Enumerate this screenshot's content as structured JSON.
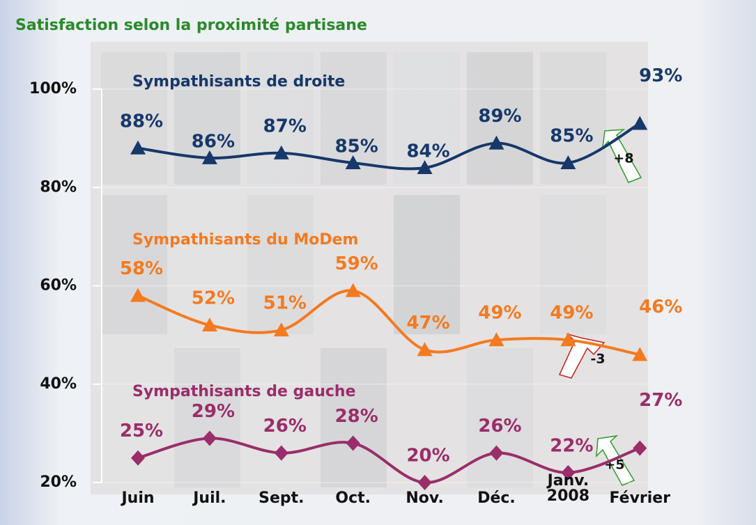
{
  "chart_data": {
    "type": "line",
    "title": "Satisfaction selon la proximité partisane",
    "categories": [
      "Juin",
      "Juil.",
      "Sept.",
      "Oct.",
      "Nov.",
      "Déc.",
      "Janv. 2008",
      "Février"
    ],
    "ylim": [
      20,
      100
    ],
    "yticks": [
      {
        "value": 20,
        "label": "20%"
      },
      {
        "value": 40,
        "label": "40%"
      },
      {
        "value": 60,
        "label": "60%"
      },
      {
        "value": 80,
        "label": "80%"
      },
      {
        "value": 100,
        "label": "100%"
      }
    ],
    "series": [
      {
        "name": "Sympathisants de droite",
        "color": "#16386a",
        "marker": "triangle",
        "values": [
          88,
          86,
          87,
          85,
          84,
          89,
          85,
          93
        ],
        "value_labels": [
          "88%",
          "86%",
          "87%",
          "85%",
          "84%",
          "89%",
          "85%",
          "93%"
        ]
      },
      {
        "name": "Sympathisants du MoDem",
        "color": "#f47a1f",
        "marker": "triangle",
        "values": [
          58,
          52,
          51,
          59,
          47,
          49,
          49,
          46
        ],
        "value_labels": [
          "58%",
          "52%",
          "51%",
          "59%",
          "47%",
          "49%",
          "49%",
          "46%"
        ]
      },
      {
        "name": "Sympathisants de gauche",
        "color": "#9a2d6a",
        "marker": "diamond",
        "values": [
          25,
          29,
          26,
          28,
          20,
          26,
          22,
          27
        ],
        "value_labels": [
          "25%",
          "29%",
          "26%",
          "28%",
          "20%",
          "26%",
          "22%",
          "27%"
        ]
      }
    ],
    "annotations": [
      "+8",
      "-3",
      "+5"
    ]
  }
}
